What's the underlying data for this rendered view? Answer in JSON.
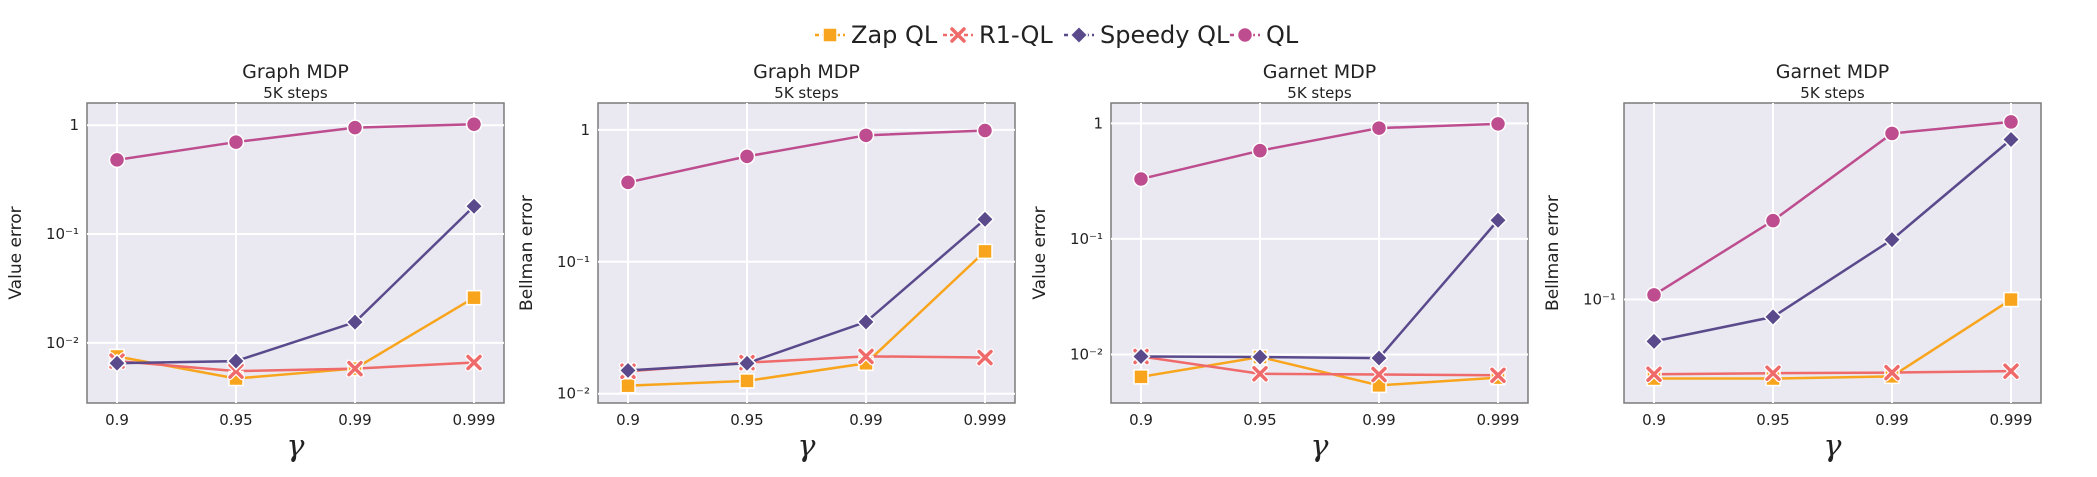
{
  "legend": [
    {
      "name": "Zap QL",
      "color": "#f8a51d",
      "marker": "square"
    },
    {
      "name": "R1-QL",
      "color": "#ef6a6a",
      "marker": "x"
    },
    {
      "name": "Speedy QL",
      "color": "#5a4a8c",
      "marker": "diamond"
    },
    {
      "name": "QL",
      "color": "#bd4d8e",
      "marker": "circle"
    }
  ],
  "chart_data": [
    {
      "type": "line",
      "title": "Graph MDP",
      "subtitle": "5K steps",
      "xlabel": "γ",
      "ylabel": "Value error",
      "yscale": "log",
      "ylim": [
        0.0028,
        1.6
      ],
      "yticks": [
        {
          "v": 1,
          "label": "1"
        },
        {
          "v": 0.1,
          "label": "10⁻¹"
        },
        {
          "v": 0.01,
          "label": "10⁻²"
        }
      ],
      "categories": [
        "0.9",
        "0.95",
        "0.99",
        "0.999"
      ],
      "series": [
        {
          "name": "Zap QL",
          "values": [
            0.0075,
            0.0047,
            0.0058,
            0.026
          ]
        },
        {
          "name": "R1-QL",
          "values": [
            0.0068,
            0.0055,
            0.0058,
            0.0066
          ]
        },
        {
          "name": "Speedy QL",
          "values": [
            0.0065,
            0.0068,
            0.0155,
            0.18
          ]
        },
        {
          "name": "QL",
          "values": [
            0.48,
            0.7,
            0.95,
            1.02
          ]
        }
      ]
    },
    {
      "type": "line",
      "title": "Graph MDP",
      "subtitle": "5K steps",
      "xlabel": "γ",
      "ylabel": "Bellman error",
      "yscale": "log",
      "ylim": [
        0.0085,
        1.6
      ],
      "yticks": [
        {
          "v": 1,
          "label": "1"
        },
        {
          "v": 0.1,
          "label": "10⁻¹"
        },
        {
          "v": 0.01,
          "label": "10⁻²"
        }
      ],
      "categories": [
        "0.9",
        "0.95",
        "0.99",
        "0.999"
      ],
      "series": [
        {
          "name": "Zap QL",
          "values": [
            0.0115,
            0.0125,
            0.017,
            0.12
          ]
        },
        {
          "name": "R1-QL",
          "values": [
            0.0148,
            0.0172,
            0.0192,
            0.0188
          ]
        },
        {
          "name": "Speedy QL",
          "values": [
            0.015,
            0.017,
            0.035,
            0.21
          ]
        },
        {
          "name": "QL",
          "values": [
            0.4,
            0.63,
            0.91,
            0.99
          ]
        }
      ]
    },
    {
      "type": "line",
      "title": "Garnet MDP",
      "subtitle": "5K steps",
      "xlabel": "γ",
      "ylabel": "Value error",
      "yscale": "log",
      "ylim": [
        0.0038,
        1.5
      ],
      "yticks": [
        {
          "v": 1,
          "label": "1"
        },
        {
          "v": 0.1,
          "label": "10⁻¹"
        },
        {
          "v": 0.01,
          "label": "10⁻²"
        }
      ],
      "categories": [
        "0.9",
        "0.95",
        "0.99",
        "0.999"
      ],
      "series": [
        {
          "name": "Zap QL",
          "values": [
            0.0064,
            0.0095,
            0.0054,
            0.0063
          ]
        },
        {
          "name": "R1-QL",
          "values": [
            0.0096,
            0.0068,
            0.0067,
            0.0066
          ]
        },
        {
          "name": "Speedy QL",
          "values": [
            0.0096,
            0.0095,
            0.0093,
            0.145
          ]
        },
        {
          "name": "QL",
          "values": [
            0.33,
            0.58,
            0.91,
            0.99
          ]
        }
      ]
    },
    {
      "type": "line",
      "title": "Garnet MDP",
      "subtitle": "5K steps",
      "xlabel": "γ",
      "ylabel": "Bellman error",
      "yscale": "log",
      "ylim": [
        0.018,
        2.6
      ],
      "yticks": [
        {
          "v": 0.1,
          "label": "10⁻¹"
        }
      ],
      "categories": [
        "0.9",
        "0.95",
        "0.99",
        "0.999"
      ],
      "series": [
        {
          "name": "Zap QL",
          "values": [
            0.027,
            0.027,
            0.028,
            0.1
          ]
        },
        {
          "name": "R1-QL",
          "values": [
            0.029,
            0.0295,
            0.0298,
            0.0305
          ]
        },
        {
          "name": "Speedy QL",
          "values": [
            0.05,
            0.075,
            0.27,
            1.42
          ]
        },
        {
          "name": "QL",
          "values": [
            0.108,
            0.37,
            1.57,
            1.9
          ]
        }
      ]
    }
  ]
}
